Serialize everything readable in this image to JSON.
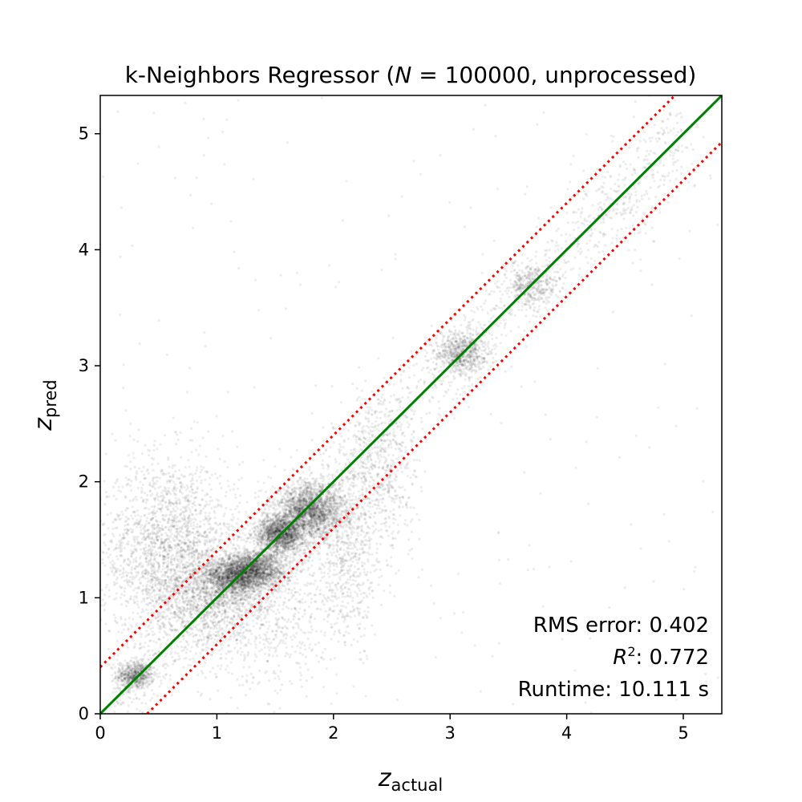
{
  "chart_data": {
    "type": "scatter",
    "title_prefix": "k-Neighbors Regressor (",
    "title_var": "N",
    "title_suffix": " = 100000, unprocessed)",
    "xlabel": {
      "main": "z",
      "sub": "actual"
    },
    "ylabel": {
      "main": "z",
      "sub": "pred"
    },
    "xlim": [
      0,
      5.33
    ],
    "ylim": [
      0,
      5.33
    ],
    "xticks": [
      0,
      1,
      2,
      3,
      4,
      5
    ],
    "yticks": [
      0,
      1,
      2,
      3,
      4,
      5
    ],
    "grid": false,
    "identity_line": {
      "slope": 1,
      "intercept": 0,
      "color": "#008000"
    },
    "band_lines": {
      "offset": 0.402,
      "style": "dotted",
      "color": "#ff0000"
    },
    "annotations": {
      "rms": "RMS error: 0.402",
      "r2_var": "R",
      "r2_exp": "2",
      "r2_rest": ": 0.772",
      "runtime": "Runtime: 10.111 s"
    },
    "point_color": "#000000",
    "point_opacity": 0.07,
    "clusters": [
      {
        "x": 0.3,
        "y": 0.33,
        "sx": 0.08,
        "sy": 0.06,
        "count": 600
      },
      {
        "x": 0.6,
        "y": 1.4,
        "sx": 0.3,
        "sy": 0.4,
        "count": 2200
      },
      {
        "x": 0.95,
        "y": 1.0,
        "sx": 0.22,
        "sy": 0.2,
        "count": 900
      },
      {
        "x": 1.15,
        "y": 1.18,
        "sx": 0.12,
        "sy": 0.08,
        "count": 1400
      },
      {
        "x": 1.35,
        "y": 1.25,
        "sx": 0.12,
        "sy": 0.08,
        "count": 1300
      },
      {
        "x": 1.55,
        "y": 1.55,
        "sx": 0.1,
        "sy": 0.08,
        "count": 1500
      },
      {
        "x": 1.8,
        "y": 1.75,
        "sx": 0.14,
        "sy": 0.12,
        "count": 2000
      },
      {
        "x": 1.4,
        "y": 0.95,
        "sx": 0.35,
        "sy": 0.35,
        "count": 900
      },
      {
        "x": 2.1,
        "y": 1.4,
        "sx": 0.15,
        "sy": 0.4,
        "count": 700
      },
      {
        "x": 2.4,
        "y": 2.1,
        "sx": 0.16,
        "sy": 0.35,
        "count": 600
      },
      {
        "x": 3.1,
        "y": 3.1,
        "sx": 0.12,
        "sy": 0.1,
        "count": 700
      },
      {
        "x": 3.7,
        "y": 3.7,
        "sx": 0.12,
        "sy": 0.1,
        "count": 400
      },
      {
        "x": 4.4,
        "y": 4.3,
        "sx": 0.25,
        "sy": 0.2,
        "count": 120
      },
      {
        "x": 4.9,
        "y": 4.85,
        "sx": 0.2,
        "sy": 0.15,
        "count": 50
      }
    ],
    "diagonal_scatter": {
      "x_range": [
        0.1,
        5.0
      ],
      "spread": 0.2,
      "count": 1200
    },
    "outliers": {
      "count": 250
    }
  }
}
